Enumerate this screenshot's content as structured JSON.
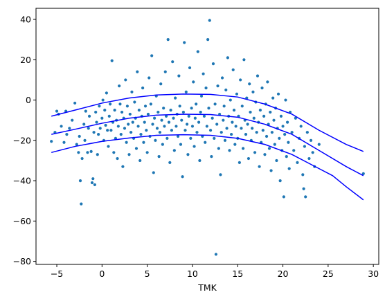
{
  "chart_data": {
    "type": "scatter",
    "xlabel": "TMK",
    "ylabel": "",
    "title": "",
    "xlim": [
      -7.3,
      30.6
    ],
    "ylim": [
      -81.5,
      45.5
    ],
    "xticks": [
      -5,
      0,
      5,
      10,
      15,
      20,
      25,
      30
    ],
    "yticks": [
      -80,
      -60,
      -40,
      -20,
      0,
      20,
      40
    ],
    "grid": false,
    "legend": "none",
    "colors": {
      "points": "#1f77b4",
      "lines": "#0000ff"
    },
    "scatter": {
      "name": "",
      "note_points": "representative sample of the visible scatter cloud",
      "points": [
        [
          -5.6,
          -20.5
        ],
        [
          -5.2,
          -16
        ],
        [
          -5.0,
          -5.5
        ],
        [
          -4.8,
          -7
        ],
        [
          -4.5,
          -13
        ],
        [
          -4.2,
          -21
        ],
        [
          -4.0,
          -5.5
        ],
        [
          -3.9,
          -17
        ],
        [
          -3.6,
          -14
        ],
        [
          -3.3,
          -10
        ],
        [
          -3.0,
          -1.5
        ],
        [
          -2.8,
          -22
        ],
        [
          -2.6,
          -26
        ],
        [
          -2.5,
          -18
        ],
        [
          -2.4,
          -40
        ],
        [
          -2.3,
          -51.5
        ],
        [
          -2.2,
          -29
        ],
        [
          -2.0,
          -12
        ],
        [
          -1.9,
          -20
        ],
        [
          -1.8,
          -5.5
        ],
        [
          -1.6,
          -26
        ],
        [
          -1.5,
          -14
        ],
        [
          -1.4,
          -8
        ],
        [
          -1.2,
          -25.5
        ],
        [
          -1.1,
          -41
        ],
        [
          -1.0,
          -39
        ],
        [
          -0.9,
          -16
        ],
        [
          -0.8,
          -42
        ],
        [
          -0.7,
          -6
        ],
        [
          -0.6,
          -11
        ],
        [
          -0.5,
          -27
        ],
        [
          -0.4,
          -17
        ],
        [
          -0.3,
          -3
        ],
        [
          -0.2,
          -14
        ],
        [
          0.0,
          -9
        ],
        [
          0.1,
          0
        ],
        [
          0.2,
          -20
        ],
        [
          0.3,
          -5
        ],
        [
          0.4,
          -12.5
        ],
        [
          0.5,
          3.5
        ],
        [
          0.6,
          -15
        ],
        [
          0.7,
          -23
        ],
        [
          0.8,
          -8
        ],
        [
          0.9,
          -2
        ],
        [
          1.0,
          -15
        ],
        [
          1.1,
          19.5
        ],
        [
          1.2,
          -11
        ],
        [
          1.3,
          -26
        ],
        [
          1.4,
          -5
        ],
        [
          1.5,
          -19
        ],
        [
          1.6,
          -10
        ],
        [
          1.7,
          -29
        ],
        [
          1.8,
          -13
        ],
        [
          1.9,
          7
        ],
        [
          2.0,
          -2
        ],
        [
          2.1,
          -17
        ],
        [
          2.2,
          -6
        ],
        [
          2.3,
          -33
        ],
        [
          2.4,
          -9
        ],
        [
          2.5,
          -14
        ],
        [
          2.6,
          10
        ],
        [
          2.7,
          -21
        ],
        [
          2.8,
          -3
        ],
        [
          2.9,
          -12
        ],
        [
          3.0,
          -27
        ],
        [
          3.1,
          -7
        ],
        [
          3.2,
          -16
        ],
        [
          3.3,
          4
        ],
        [
          3.4,
          -11
        ],
        [
          3.5,
          -19
        ],
        [
          3.6,
          -1
        ],
        [
          3.7,
          -9
        ],
        [
          3.8,
          -24
        ],
        [
          3.9,
          14
        ],
        [
          4.0,
          -13
        ],
        [
          4.1,
          -5
        ],
        [
          4.2,
          -30
        ],
        [
          4.3,
          -17
        ],
        [
          4.4,
          -8
        ],
        [
          4.5,
          6
        ],
        [
          4.6,
          -21
        ],
        [
          4.7,
          -11
        ],
        [
          4.8,
          -3
        ],
        [
          4.9,
          -15
        ],
        [
          5.0,
          -26
        ],
        [
          5.1,
          -7
        ],
        [
          5.2,
          11
        ],
        [
          5.3,
          -18
        ],
        [
          5.4,
          -2
        ],
        [
          5.5,
          22
        ],
        [
          5.6,
          -12
        ],
        [
          5.7,
          -36
        ],
        [
          5.8,
          -9
        ],
        [
          5.9,
          -20
        ],
        [
          6.0,
          2
        ],
        [
          6.1,
          -14
        ],
        [
          6.2,
          -6
        ],
        [
          6.3,
          -28
        ],
        [
          6.4,
          -16
        ],
        [
          6.5,
          8
        ],
        [
          6.6,
          -10
        ],
        [
          6.7,
          -22
        ],
        [
          6.8,
          -4
        ],
        [
          6.9,
          -13
        ],
        [
          7.0,
          14
        ],
        [
          7.1,
          -8
        ],
        [
          7.2,
          -19
        ],
        [
          7.3,
          30
        ],
        [
          7.4,
          -11
        ],
        [
          7.5,
          -31
        ],
        [
          7.6,
          -5
        ],
        [
          7.7,
          -15
        ],
        [
          7.8,
          19
        ],
        [
          7.9,
          -9
        ],
        [
          8.0,
          -25
        ],
        [
          8.1,
          1
        ],
        [
          8.2,
          -13
        ],
        [
          8.3,
          -7
        ],
        [
          8.4,
          -18
        ],
        [
          8.5,
          12
        ],
        [
          8.6,
          -3
        ],
        [
          8.7,
          -22
        ],
        [
          8.8,
          -10
        ],
        [
          8.9,
          -38
        ],
        [
          9.0,
          -6
        ],
        [
          9.1,
          28.5
        ],
        [
          9.2,
          -15
        ],
        [
          9.3,
          4
        ],
        [
          9.4,
          -12
        ],
        [
          9.5,
          -27
        ],
        [
          9.6,
          -8
        ],
        [
          9.7,
          16
        ],
        [
          9.8,
          -19
        ],
        [
          9.9,
          -4
        ],
        [
          10.0,
          -13
        ],
        [
          10.1,
          9
        ],
        [
          10.2,
          -23
        ],
        [
          10.3,
          -9
        ],
        [
          10.4,
          -2
        ],
        [
          10.5,
          -16
        ],
        [
          10.6,
          24
        ],
        [
          10.7,
          -11
        ],
        [
          10.8,
          -30
        ],
        [
          10.9,
          -6
        ],
        [
          11.0,
          2
        ],
        [
          11.1,
          -18
        ],
        [
          11.2,
          13
        ],
        [
          11.3,
          -8
        ],
        [
          11.4,
          -21
        ],
        [
          11.5,
          6
        ],
        [
          11.6,
          -13
        ],
        [
          11.7,
          30
        ],
        [
          11.8,
          -4
        ],
        [
          11.9,
          39.5
        ],
        [
          12.0,
          -15
        ],
        [
          12.1,
          -28
        ],
        [
          12.2,
          -9
        ],
        [
          12.3,
          18
        ],
        [
          12.4,
          -19
        ],
        [
          12.5,
          -2
        ],
        [
          12.6,
          -76.5
        ],
        [
          12.7,
          -12
        ],
        [
          12.8,
          7
        ],
        [
          12.9,
          -24
        ],
        [
          13.0,
          -7
        ],
        [
          13.1,
          -37
        ],
        [
          13.2,
          -16
        ],
        [
          13.3,
          11
        ],
        [
          13.4,
          -10
        ],
        [
          13.5,
          -3
        ],
        [
          13.6,
          -20
        ],
        [
          13.7,
          5
        ],
        [
          13.8,
          -14
        ],
        [
          13.9,
          21
        ],
        [
          14.0,
          -8
        ],
        [
          14.1,
          -25
        ],
        [
          14.2,
          0
        ],
        [
          14.3,
          -17
        ],
        [
          14.4,
          -11
        ],
        [
          14.5,
          15
        ],
        [
          14.6,
          -5
        ],
        [
          14.7,
          -22
        ],
        [
          14.8,
          -13
        ],
        [
          14.9,
          3
        ],
        [
          15.0,
          -19
        ],
        [
          15.1,
          -8
        ],
        [
          15.2,
          -31
        ],
        [
          15.3,
          10
        ],
        [
          15.4,
          -14
        ],
        [
          15.5,
          -3
        ],
        [
          15.6,
          -24
        ],
        [
          15.7,
          20
        ],
        [
          15.8,
          -10
        ],
        [
          15.9,
          -17
        ],
        [
          16.0,
          1
        ],
        [
          16.1,
          -12
        ],
        [
          16.2,
          -29
        ],
        [
          16.3,
          8
        ],
        [
          16.4,
          -6
        ],
        [
          16.5,
          -20
        ],
        [
          16.6,
          -14
        ],
        [
          16.7,
          4
        ],
        [
          16.8,
          -9
        ],
        [
          16.9,
          -26
        ],
        [
          17.0,
          -1
        ],
        [
          17.1,
          -16
        ],
        [
          17.2,
          12
        ],
        [
          17.3,
          -11
        ],
        [
          17.4,
          -33
        ],
        [
          17.5,
          -5
        ],
        [
          17.6,
          -21
        ],
        [
          17.7,
          6
        ],
        [
          17.8,
          -15
        ],
        [
          17.9,
          -8
        ],
        [
          18.0,
          -27
        ],
        [
          18.1,
          -2
        ],
        [
          18.2,
          -18
        ],
        [
          18.3,
          9
        ],
        [
          18.4,
          -12
        ],
        [
          18.5,
          -24
        ],
        [
          18.6,
          -6
        ],
        [
          18.7,
          -35
        ],
        [
          18.8,
          -16
        ],
        [
          18.9,
          1
        ],
        [
          19.0,
          -10
        ],
        [
          19.1,
          -22
        ],
        [
          19.2,
          -4
        ],
        [
          19.3,
          -30
        ],
        [
          19.4,
          -14
        ],
        [
          19.5,
          3
        ],
        [
          19.6,
          -19
        ],
        [
          19.7,
          -40
        ],
        [
          19.8,
          -8
        ],
        [
          19.9,
          -25
        ],
        [
          20.0,
          -13
        ],
        [
          20.1,
          -48
        ],
        [
          20.2,
          -17
        ],
        [
          20.3,
          0
        ],
        [
          20.4,
          -28
        ],
        [
          20.5,
          -11
        ],
        [
          20.6,
          -21
        ],
        [
          20.7,
          -34
        ],
        [
          20.8,
          -6
        ],
        [
          21.0,
          -16
        ],
        [
          21.2,
          -25
        ],
        [
          21.4,
          -9
        ],
        [
          21.6,
          -31
        ],
        [
          21.8,
          -19
        ],
        [
          22.0,
          -13
        ],
        [
          22.2,
          -37
        ],
        [
          22.3,
          -44
        ],
        [
          22.4,
          -23
        ],
        [
          22.5,
          -48
        ],
        [
          22.7,
          -16
        ],
        [
          22.9,
          -29
        ],
        [
          23.1,
          -20
        ],
        [
          23.3,
          -26
        ],
        [
          23.5,
          -33
        ],
        [
          24.0,
          -22
        ],
        [
          28.9,
          -36.5
        ]
      ]
    },
    "series": [
      {
        "name": "",
        "x": [
          -5.6,
          -3,
          0,
          3,
          6,
          9,
          12,
          15,
          18,
          21,
          24,
          27,
          28.9
        ],
        "y": [
          -8,
          -5,
          -1.5,
          1,
          2.5,
          3,
          2.8,
          1.5,
          -2,
          -7,
          -15,
          -22,
          -25.5
        ]
      },
      {
        "name": "",
        "x": [
          -5.6,
          -3,
          0,
          3,
          6,
          9,
          12,
          15,
          18,
          21,
          24,
          27,
          28.9
        ],
        "y": [
          -17,
          -14.5,
          -11.5,
          -9,
          -7.5,
          -7,
          -7.2,
          -8.5,
          -12,
          -17,
          -25,
          -33,
          -37.5
        ]
      },
      {
        "name": "",
        "x": [
          -5.6,
          -3,
          0,
          3,
          6,
          9,
          12,
          15,
          18,
          21,
          24,
          25.5,
          27,
          28.9
        ],
        "y": [
          -26,
          -23,
          -20.5,
          -18.8,
          -17.5,
          -17.2,
          -17.5,
          -19,
          -22,
          -27,
          -34,
          -37.5,
          -43,
          -49.5
        ]
      }
    ]
  }
}
